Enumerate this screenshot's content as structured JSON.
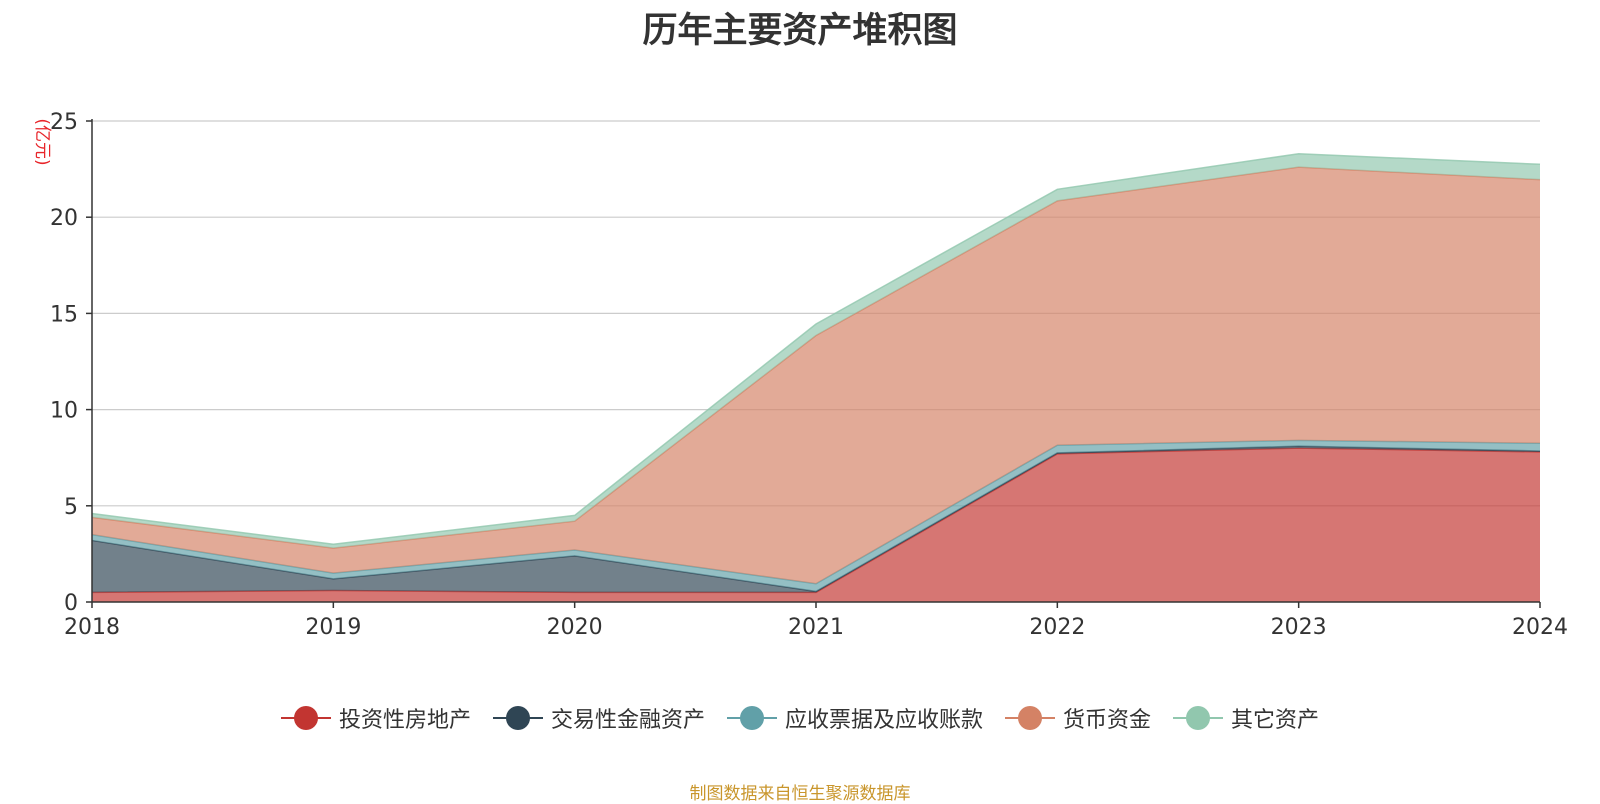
{
  "chart_data": {
    "type": "area",
    "stacked": true,
    "title": "历年主要资产堆积图",
    "ylabel": "(亿元)",
    "x": [
      "2018",
      "2019",
      "2020",
      "2021",
      "2022",
      "2023",
      "2024"
    ],
    "ylim": [
      0,
      25
    ],
    "yticks": [
      0,
      5,
      10,
      15,
      20,
      25
    ],
    "grid": true,
    "legend_position": "bottom",
    "series": [
      {
        "name": "投资性房地产",
        "color": "#c23531",
        "values": [
          0.5,
          0.6,
          0.5,
          0.5,
          7.7,
          8.0,
          7.8
        ]
      },
      {
        "name": "交易性金融资产",
        "color": "#2f4554",
        "values": [
          2.7,
          0.6,
          1.9,
          0.05,
          0.05,
          0.1,
          0.05
        ]
      },
      {
        "name": "应收票据及应收账款",
        "color": "#61a0a8",
        "values": [
          0.3,
          0.3,
          0.3,
          0.4,
          0.4,
          0.3,
          0.4
        ]
      },
      {
        "name": "货币资金",
        "color": "#d48265",
        "values": [
          0.9,
          1.3,
          1.5,
          12.9,
          12.7,
          14.2,
          13.7
        ]
      },
      {
        "name": "其它资产",
        "color": "#91c7ae",
        "values": [
          0.2,
          0.2,
          0.3,
          0.6,
          0.6,
          0.7,
          0.8
        ]
      }
    ]
  },
  "footer": {
    "source": "制图数据来自恒生聚源数据库"
  }
}
